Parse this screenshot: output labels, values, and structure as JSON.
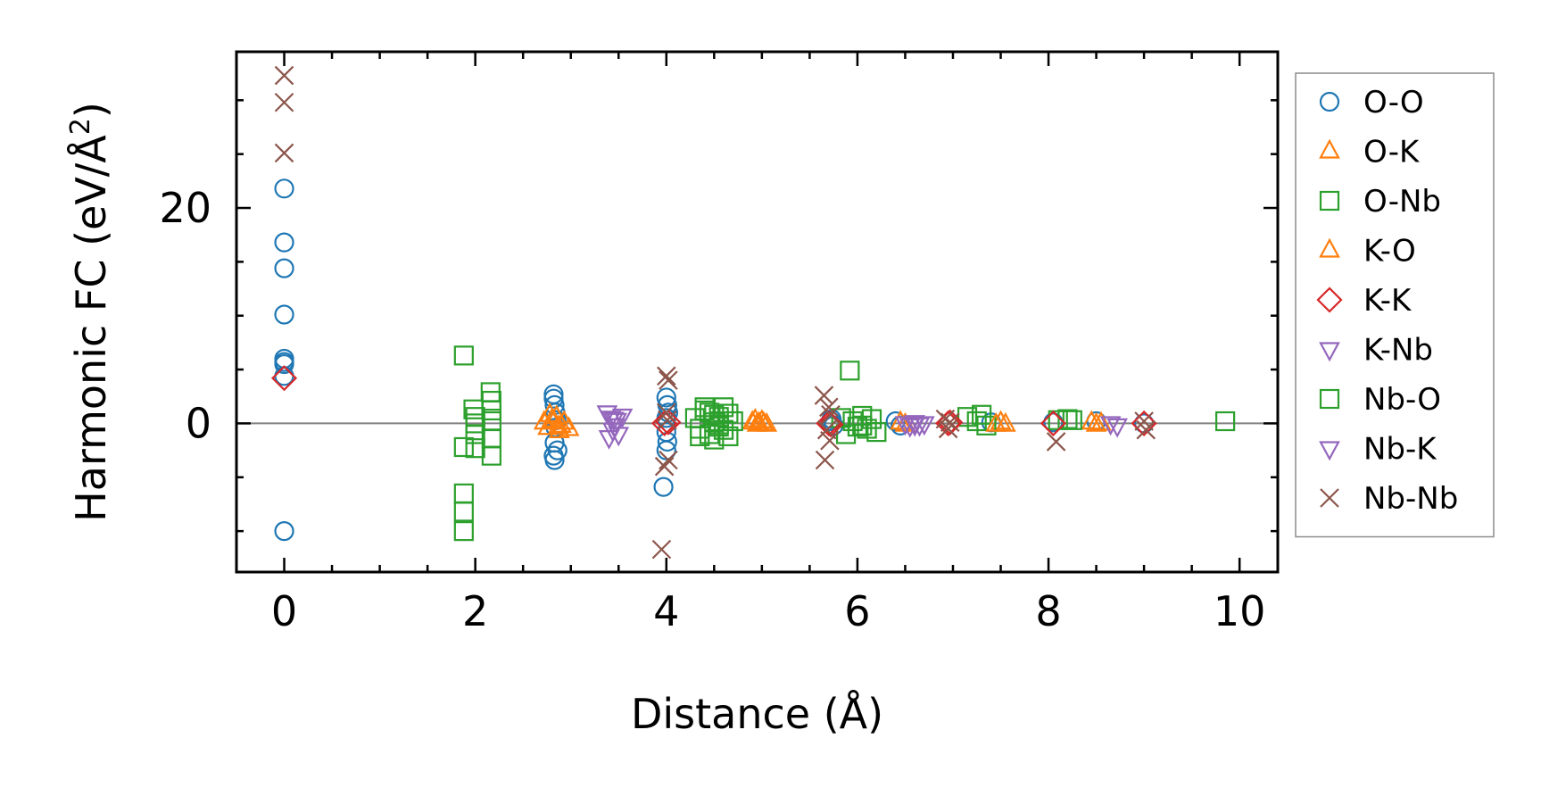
{
  "chart_data": {
    "type": "scatter",
    "xlabel": "Distance (Å)",
    "ylabel_main": "Harmonic FC (eV/Å",
    "ylabel_sup": "2",
    "ylabel_close": ")",
    "xlim": [
      -0.5,
      10.4
    ],
    "ylim": [
      -13.8,
      34.5
    ],
    "xticks": [
      0,
      2,
      4,
      6,
      8,
      10
    ],
    "yticks": [
      0,
      20
    ],
    "xtick_labels": [
      "0",
      "2",
      "4",
      "6",
      "8",
      "10"
    ],
    "ytick_labels": [
      "0",
      "20"
    ],
    "zero_line": true,
    "legend_position": "right",
    "series": [
      {
        "name": "O-O",
        "marker": "circle",
        "color": "#1f77b4",
        "x": [
          0,
          0,
          0,
          0,
          0,
          0,
          0,
          0,
          0,
          2.82,
          2.82,
          2.83,
          2.84,
          2.85,
          2.84,
          2.83,
          2.86,
          2.82,
          2.83,
          3.97,
          4.0,
          4.01,
          4.02,
          4.0,
          4.0,
          4.01,
          4.0,
          5.72,
          5.75,
          5.73,
          6.4,
          6.45,
          7.4,
          8.05,
          8.5,
          9.0
        ],
        "y": [
          21.8,
          16.8,
          14.4,
          10.1,
          6.0,
          5.7,
          5.5,
          4.4,
          -10.0,
          2.7,
          2.3,
          1.7,
          1.0,
          0.3,
          -0.4,
          -1.8,
          -2.5,
          -3.0,
          -3.4,
          -5.9,
          2.4,
          1.7,
          1.0,
          0.5,
          -0.8,
          -1.7,
          -2.5,
          0.2,
          -0.2,
          0.4,
          0.2,
          -0.2,
          0.1,
          0.1,
          0.2,
          0.0
        ]
      },
      {
        "name": "O-K",
        "marker": "triangle-up",
        "color": "#ff7f0e",
        "x": [
          2.72,
          2.76,
          2.8,
          2.85,
          2.9,
          2.93,
          2.98,
          2.78,
          2.88,
          4.9,
          4.95,
          5.0,
          5.05,
          4.93,
          5.02,
          6.45,
          6.5,
          7.5,
          7.55,
          8.45,
          8.5,
          8.55
        ],
        "y": [
          0.1,
          -0.4,
          0.3,
          0.6,
          -0.2,
          0.1,
          -0.5,
          0.8,
          -0.7,
          0.1,
          -0.1,
          0.2,
          -0.1,
          0.3,
          0.0,
          0.1,
          -0.1,
          0.1,
          -0.1,
          0.1,
          -0.1,
          0.0
        ]
      },
      {
        "name": "O-Nb",
        "marker": "square",
        "color": "#2ca02c",
        "x": [
          1.88,
          1.88,
          1.88,
          1.88,
          1.88,
          1.98,
          2.0,
          2.0,
          2.0,
          2.0,
          2.16,
          2.17,
          2.17,
          2.17,
          2.17,
          2.17,
          4.3,
          4.35,
          4.4,
          4.45,
          4.5,
          4.55,
          4.6,
          4.65,
          4.7,
          4.45,
          4.5,
          4.55,
          4.6,
          4.35,
          4.4,
          4.65,
          4.5,
          4.55,
          5.83,
          5.88,
          5.92,
          5.95,
          6.0,
          6.05,
          6.1,
          6.15,
          6.2,
          7.15,
          7.25,
          7.3,
          7.35,
          8.1,
          8.2,
          8.25,
          9.85
        ],
        "y": [
          6.3,
          -2.2,
          -6.5,
          -8.2,
          -10.0,
          1.3,
          0.0,
          -1.0,
          -2.3,
          0.6,
          2.9,
          2.1,
          1.2,
          0.2,
          -1.4,
          -3.0,
          0.5,
          -0.5,
          1.2,
          -1.0,
          0.8,
          -0.3,
          1.5,
          -1.2,
          0.2,
          1.0,
          -1.5,
          0.6,
          -0.6,
          -1.2,
          1.5,
          0.9,
          0.1,
          -0.1,
          0.5,
          -1.0,
          4.9,
          0.2,
          -0.3,
          0.7,
          -0.5,
          0.4,
          -0.8,
          0.6,
          0.2,
          0.8,
          -0.2,
          0.3,
          0.4,
          0.3,
          0.2
        ]
      },
      {
        "name": "K-O",
        "marker": "triangle-up",
        "color": "#ff7f0e",
        "x": [
          2.82,
          2.87,
          4.97,
          7.45
        ],
        "y": [
          0.2,
          -0.3,
          0.0,
          -0.1
        ]
      },
      {
        "name": "K-K",
        "marker": "diamond",
        "color": "#d62728",
        "x": [
          0,
          3.98,
          4.02,
          5.7,
          5.72,
          6.95,
          6.97,
          8.05,
          9.0
        ],
        "y": [
          4.2,
          0.0,
          0.1,
          0.0,
          -0.1,
          0.0,
          0.1,
          0.0,
          0.0
        ]
      },
      {
        "name": "K-Nb",
        "marker": "triangle-down",
        "color": "#9467bd",
        "x": [
          3.38,
          3.42,
          3.46,
          3.5,
          3.54,
          3.44,
          3.48,
          3.4,
          6.5,
          6.55,
          6.6,
          6.65,
          6.7,
          8.65,
          8.72
        ],
        "y": [
          1.0,
          0.5,
          -0.2,
          -1.0,
          0.7,
          -0.6,
          0.3,
          -1.3,
          0.0,
          -0.2,
          0.1,
          -0.1,
          0.0,
          0.0,
          -0.2
        ]
      },
      {
        "name": "Nb-O",
        "marker": "square",
        "color": "#2ca02c",
        "x": [
          4.55,
          6.05
        ],
        "y": [
          0.2,
          -0.2
        ]
      },
      {
        "name": "Nb-K",
        "marker": "triangle-down",
        "color": "#9467bd",
        "x": [
          3.45,
          6.6
        ],
        "y": [
          0.4,
          -0.1
        ]
      },
      {
        "name": "Nb-Nb",
        "marker": "x",
        "color": "#8c564b",
        "x": [
          0,
          0,
          0,
          3.95,
          4.0,
          4.02,
          4.0,
          4.02,
          3.98,
          4.01,
          5.65,
          5.7,
          5.72,
          5.68,
          5.66,
          5.71,
          6.92,
          6.95,
          6.97,
          8.08,
          9.02,
          9.0
        ],
        "y": [
          32.3,
          29.8,
          25.1,
          -11.7,
          4.4,
          4.0,
          1.0,
          -3.4,
          -4.0,
          0.3,
          2.6,
          1.5,
          0.8,
          -0.6,
          -3.4,
          -1.6,
          0.4,
          -0.5,
          0.1,
          -1.7,
          -0.6,
          0.2
        ]
      }
    ]
  }
}
